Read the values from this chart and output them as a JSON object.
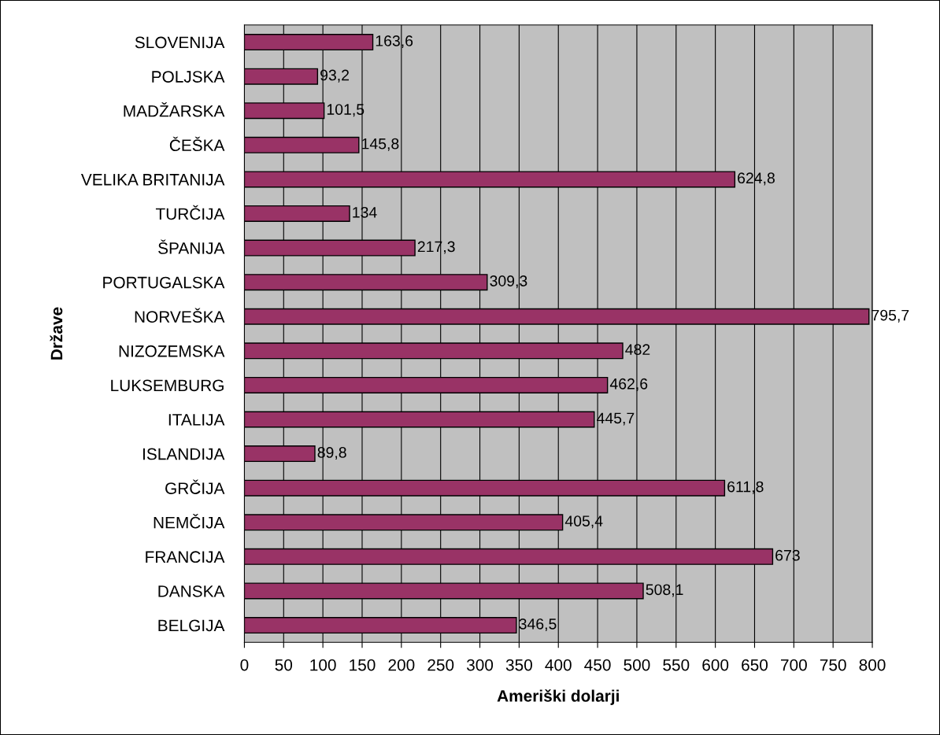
{
  "chart_data": {
    "type": "bar",
    "orientation": "horizontal",
    "xlabel": "Ameriški dolarji",
    "ylabel": "Države",
    "categories": [
      "SLOVENIJA",
      "POLJSKA",
      "MADŽARSKA",
      "ČEŠKA",
      "VELIKA BRITANIJA",
      "TURČIJA",
      "ŠPANIJA",
      "PORTUGALSKA",
      "NORVEŠKA",
      "NIZOZEMSKA",
      "LUKSEMBURG",
      "ITALIJA",
      "ISLANDIJA",
      "GRČIJA",
      "NEMČIJA",
      "FRANCIJA",
      "DANSKA",
      "BELGIJA"
    ],
    "values": [
      163.6,
      93.2,
      101.5,
      145.8,
      624.8,
      134,
      217.3,
      309.3,
      795.7,
      482,
      462.6,
      445.7,
      89.8,
      611.8,
      405.4,
      673,
      508.1,
      346.5
    ],
    "value_labels": [
      "163,6",
      "93,2",
      "101,5",
      "145,8",
      "624,8",
      "134",
      "217,3",
      "309,3",
      "795,7",
      "482",
      "462,6",
      "445,7",
      "89,8",
      "611,8",
      "405,4",
      "673",
      "508,1",
      "346,5"
    ],
    "color": "#993366",
    "xlim": [
      0,
      800
    ],
    "xticks": [
      0,
      50,
      100,
      150,
      200,
      250,
      300,
      350,
      400,
      450,
      500,
      550,
      600,
      650,
      700,
      750,
      800
    ],
    "grid": "x",
    "legend": false
  }
}
